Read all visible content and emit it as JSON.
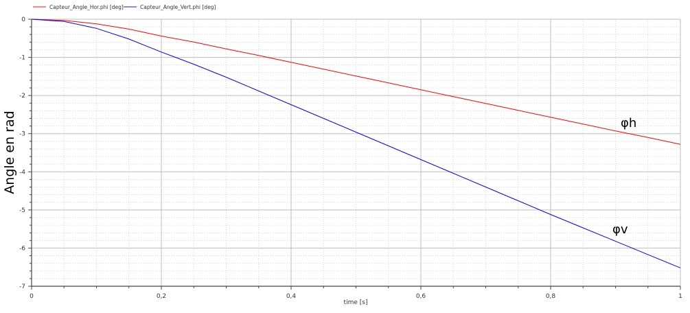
{
  "chart_data": {
    "type": "line",
    "xlabel": "time [s]",
    "ylabel": "Angle en rad",
    "xlim": [
      0,
      1
    ],
    "ylim": [
      -7,
      0
    ],
    "x_ticks": [
      "0",
      "0,2",
      "0,4",
      "0,6",
      "0,8",
      "1"
    ],
    "y_ticks": [
      "0",
      "-1",
      "-2",
      "-3",
      "-4",
      "-5",
      "-6",
      "-7"
    ],
    "grid": true,
    "legend_position": "top-left",
    "x": [
      0,
      0.05,
      0.1,
      0.15,
      0.2,
      0.25,
      0.3,
      0.35,
      0.4,
      0.45,
      0.5,
      0.55,
      0.6,
      0.65,
      0.7,
      0.75,
      0.8,
      0.85,
      0.9,
      0.95,
      1
    ],
    "series": [
      {
        "name": "Capteur_Angle_Hor.phi [deg]",
        "color": "#ff0000",
        "values": [
          0,
          -0.03,
          -0.12,
          -0.26,
          -0.44,
          -0.6,
          -0.78,
          -0.95,
          -1.13,
          -1.31,
          -1.49,
          -1.67,
          -1.85,
          -2.03,
          -2.21,
          -2.39,
          -2.57,
          -2.75,
          -2.93,
          -3.1,
          -3.28
        ]
      },
      {
        "name": "Capteur_Angle_Vert.phi [deg]",
        "color": "#0000ff",
        "values": [
          0,
          -0.06,
          -0.24,
          -0.52,
          -0.86,
          -1.18,
          -1.52,
          -1.88,
          -2.24,
          -2.6,
          -2.96,
          -3.32,
          -3.68,
          -4.04,
          -4.4,
          -4.76,
          -5.12,
          -5.47,
          -5.82,
          -6.17,
          -6.52
        ]
      }
    ],
    "annotations": [
      {
        "text": "φh",
        "x": 0.92,
        "y": -2.7
      },
      {
        "text": "φv",
        "x": 0.9,
        "y": -5.5
      }
    ]
  }
}
